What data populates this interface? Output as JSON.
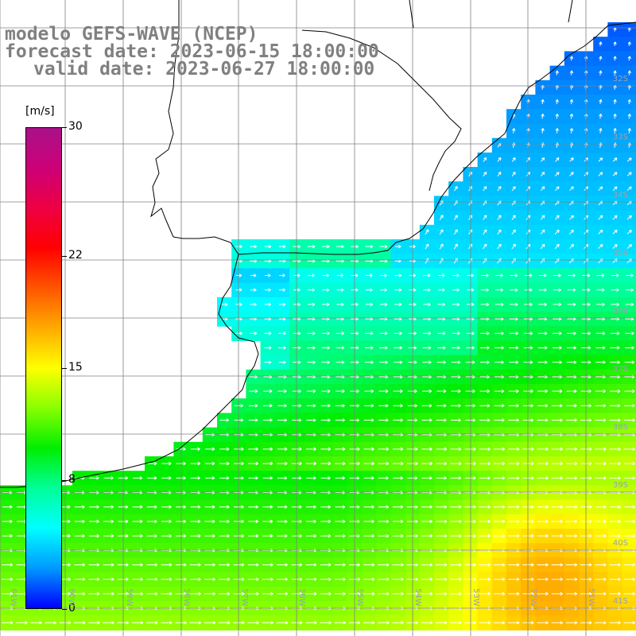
{
  "title": {
    "model": "modelo GEFS-WAVE (NCEP)",
    "forecast_date": "forecast date: 2023-06-15 18:00:00",
    "valid_date": "valid date: 2023-06-27 18:00:00"
  },
  "legend": {
    "unit": "[m/s]",
    "ticks": [
      "30",
      "22",
      "15",
      "8",
      "0"
    ],
    "tick_values": [
      30,
      22,
      15,
      8,
      0
    ],
    "min": 0,
    "max": 30,
    "colors": [
      "#0000ff",
      "#0099ff",
      "#00ffff",
      "#00ff99",
      "#00ee00",
      "#88ff00",
      "#ffff00",
      "#ffaa00",
      "#ff5500",
      "#ff0000",
      "#ee0044",
      "#cc0077",
      "#aa1188"
    ]
  },
  "lat_labels": [
    "32S",
    "33S",
    "34S",
    "35S",
    "36S",
    "37S",
    "38S",
    "39S",
    "40S",
    "41S"
  ],
  "lon_labels": [
    "61W",
    "60W",
    "59W",
    "58W",
    "57W",
    "56W",
    "55W",
    "54W",
    "53W",
    "52W",
    "51W"
  ],
  "colors": {
    "land": "#ffffff",
    "coast": "#000000",
    "grid": "#808080",
    "title": "#808080",
    "arrow": "#ffffff"
  }
}
